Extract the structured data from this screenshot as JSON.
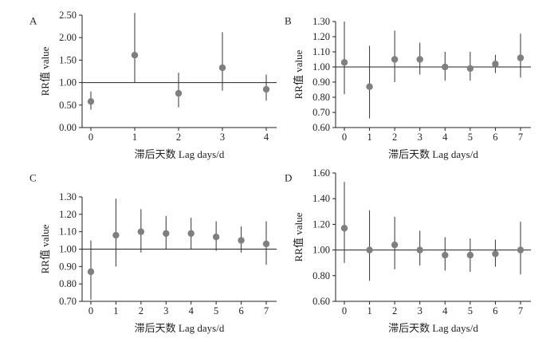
{
  "chart_data": [
    {
      "type": "scatter",
      "panel_label": "A",
      "xlabel": "滞后天数 Lag days/d",
      "ylabel": "RR值 value",
      "categories": [
        "0",
        "1",
        "2",
        "3",
        "4"
      ],
      "values": [
        0.58,
        1.61,
        0.76,
        1.33,
        0.85
      ],
      "lower": [
        0.4,
        1.0,
        0.45,
        0.82,
        0.6
      ],
      "upper": [
        0.8,
        2.55,
        1.22,
        2.12,
        1.18
      ],
      "reference_line": 1.0,
      "ylim": [
        0.0,
        2.5
      ],
      "yticks": [
        "0.00",
        "0.50",
        "1.00",
        "1.50",
        "2.00",
        "2.50"
      ]
    },
    {
      "type": "scatter",
      "panel_label": "B",
      "xlabel": "滞后天数 Lag days/d",
      "ylabel": "RR值 value",
      "categories": [
        "0",
        "1",
        "2",
        "3",
        "4",
        "5",
        "6",
        "7"
      ],
      "values": [
        1.03,
        0.87,
        1.05,
        1.05,
        1.0,
        0.99,
        1.02,
        1.06
      ],
      "lower": [
        0.82,
        0.66,
        0.9,
        0.95,
        0.91,
        0.91,
        0.96,
        0.93
      ],
      "upper": [
        1.3,
        1.14,
        1.24,
        1.16,
        1.1,
        1.1,
        1.08,
        1.22
      ],
      "reference_line": 1.0,
      "ylim": [
        0.6,
        1.3
      ],
      "yticks": [
        "0.60",
        "0.70",
        "0.80",
        "0.90",
        "1.00",
        "1.10",
        "1.20",
        "1.30"
      ]
    },
    {
      "type": "scatter",
      "panel_label": "C",
      "xlabel": "滞后天数 Lag days/d",
      "ylabel": "RR值 value",
      "categories": [
        "0",
        "1",
        "2",
        "3",
        "4",
        "5",
        "6",
        "7"
      ],
      "values": [
        0.87,
        1.08,
        1.1,
        1.09,
        1.09,
        1.07,
        1.05,
        1.03
      ],
      "lower": [
        0.71,
        0.9,
        0.98,
        1.0,
        1.0,
        0.99,
        0.98,
        0.91
      ],
      "upper": [
        1.05,
        1.29,
        1.23,
        1.19,
        1.18,
        1.16,
        1.13,
        1.16
      ],
      "reference_line": 1.0,
      "ylim": [
        0.7,
        1.3
      ],
      "yticks": [
        "0.70",
        "0.80",
        "0.90",
        "1.00",
        "1.10",
        "1.20",
        "1.30"
      ]
    },
    {
      "type": "scatter",
      "panel_label": "D",
      "xlabel": "滞后天数 Lag days/d",
      "ylabel": "RR值 value",
      "categories": [
        "0",
        "1",
        "2",
        "3",
        "4",
        "5",
        "6",
        "7"
      ],
      "values": [
        1.17,
        1.0,
        1.04,
        1.0,
        0.96,
        0.96,
        0.97,
        1.0
      ],
      "lower": [
        0.9,
        0.76,
        0.85,
        0.88,
        0.84,
        0.83,
        0.87,
        0.81
      ],
      "upper": [
        1.53,
        1.31,
        1.26,
        1.15,
        1.1,
        1.09,
        1.08,
        1.22
      ],
      "reference_line": 1.0,
      "ylim": [
        0.6,
        1.6
      ],
      "yticks": [
        "0.60",
        "0.80",
        "1.00",
        "1.20",
        "1.40",
        "1.60"
      ]
    }
  ]
}
